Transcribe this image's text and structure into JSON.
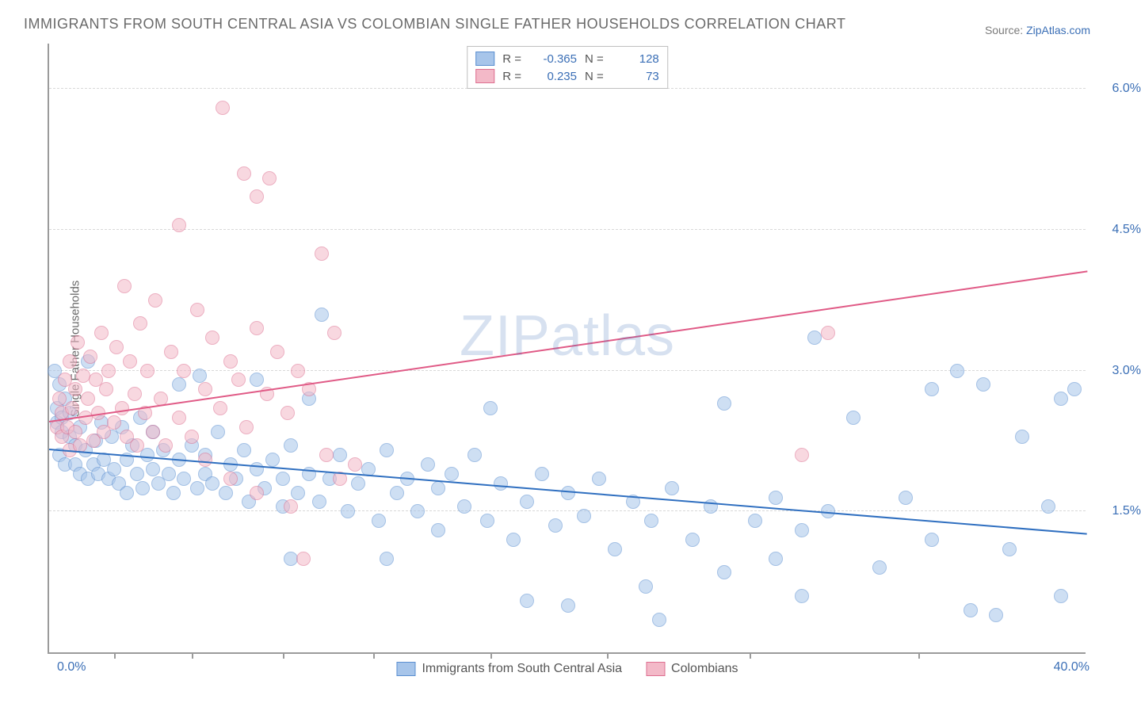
{
  "title": "IMMIGRANTS FROM SOUTH CENTRAL ASIA VS COLOMBIAN SINGLE FATHER HOUSEHOLDS CORRELATION CHART",
  "source_label": "Source: ",
  "source_name": "ZipAtlas.com",
  "watermark_a": "ZIP",
  "watermark_b": "atlas",
  "y_axis_label": "Single Father Households",
  "chart": {
    "type": "scatter",
    "xlim": [
      0,
      40
    ],
    "ylim": [
      0,
      6.5
    ],
    "xticks_labels": [
      "0.0%",
      "40.0%"
    ],
    "yticks": [
      1.5,
      3.0,
      4.5,
      6.0
    ],
    "ytick_labels": [
      "1.5%",
      "3.0%",
      "4.5%",
      "6.0%"
    ],
    "xtick_marks": [
      2.5,
      5.5,
      9,
      12.5,
      17,
      21.5,
      27,
      33.5
    ],
    "background_color": "#ffffff",
    "grid_color": "#d8d8d8",
    "axis_color": "#9b9b9b",
    "label_color": "#6a6a6a",
    "tick_label_color": "#3b6fb6",
    "point_radius": 9,
    "point_opacity": 0.55,
    "line_width": 2,
    "series": [
      {
        "key": "sca",
        "name": "Immigrants from South Central Asia",
        "fill": "#a7c5ea",
        "stroke": "#5b8fd0",
        "line_color": "#2f6fc0",
        "R": "-0.365",
        "N": "128",
        "trend": {
          "x1": 0,
          "y1": 2.15,
          "x2": 40,
          "y2": 1.25
        },
        "points": [
          [
            0.2,
            3.0
          ],
          [
            0.3,
            2.6
          ],
          [
            0.3,
            2.45
          ],
          [
            0.4,
            2.85
          ],
          [
            0.4,
            2.1
          ],
          [
            0.5,
            2.5
          ],
          [
            0.5,
            2.35
          ],
          [
            0.6,
            2.7
          ],
          [
            0.6,
            2.0
          ],
          [
            0.8,
            2.3
          ],
          [
            0.8,
            2.55
          ],
          [
            1.0,
            2.2
          ],
          [
            1.0,
            2.0
          ],
          [
            1.2,
            1.9
          ],
          [
            1.2,
            2.4
          ],
          [
            1.4,
            2.15
          ],
          [
            1.5,
            3.1
          ],
          [
            1.5,
            1.85
          ],
          [
            1.7,
            2.0
          ],
          [
            1.8,
            2.25
          ],
          [
            1.9,
            1.9
          ],
          [
            2.0,
            2.45
          ],
          [
            2.1,
            2.05
          ],
          [
            2.3,
            1.85
          ],
          [
            2.4,
            2.3
          ],
          [
            2.5,
            1.95
          ],
          [
            2.7,
            1.8
          ],
          [
            2.8,
            2.4
          ],
          [
            3.0,
            2.05
          ],
          [
            3.0,
            1.7
          ],
          [
            3.2,
            2.2
          ],
          [
            3.4,
            1.9
          ],
          [
            3.5,
            2.5
          ],
          [
            3.6,
            1.75
          ],
          [
            3.8,
            2.1
          ],
          [
            4.0,
            1.95
          ],
          [
            4.0,
            2.35
          ],
          [
            4.2,
            1.8
          ],
          [
            4.4,
            2.15
          ],
          [
            4.6,
            1.9
          ],
          [
            4.8,
            1.7
          ],
          [
            5.0,
            2.05
          ],
          [
            5.0,
            2.85
          ],
          [
            5.2,
            1.85
          ],
          [
            5.5,
            2.2
          ],
          [
            5.7,
            1.75
          ],
          [
            5.8,
            2.95
          ],
          [
            6.0,
            1.9
          ],
          [
            6.0,
            2.1
          ],
          [
            6.3,
            1.8
          ],
          [
            6.5,
            2.35
          ],
          [
            6.8,
            1.7
          ],
          [
            7.0,
            2.0
          ],
          [
            7.2,
            1.85
          ],
          [
            7.5,
            2.15
          ],
          [
            7.7,
            1.6
          ],
          [
            8.0,
            1.95
          ],
          [
            8.0,
            2.9
          ],
          [
            8.3,
            1.75
          ],
          [
            8.6,
            2.05
          ],
          [
            9.0,
            1.85
          ],
          [
            9.0,
            1.55
          ],
          [
            9.3,
            2.2
          ],
          [
            9.3,
            1.0
          ],
          [
            9.6,
            1.7
          ],
          [
            10.0,
            1.9
          ],
          [
            10.0,
            2.7
          ],
          [
            10.4,
            1.6
          ],
          [
            10.5,
            3.6
          ],
          [
            10.8,
            1.85
          ],
          [
            11.2,
            2.1
          ],
          [
            11.5,
            1.5
          ],
          [
            11.9,
            1.8
          ],
          [
            12.3,
            1.95
          ],
          [
            12.7,
            1.4
          ],
          [
            13.0,
            2.15
          ],
          [
            13.0,
            1.0
          ],
          [
            13.4,
            1.7
          ],
          [
            13.8,
            1.85
          ],
          [
            14.2,
            1.5
          ],
          [
            14.6,
            2.0
          ],
          [
            15.0,
            1.75
          ],
          [
            15.0,
            1.3
          ],
          [
            15.5,
            1.9
          ],
          [
            16.0,
            1.55
          ],
          [
            16.4,
            2.1
          ],
          [
            16.9,
            1.4
          ],
          [
            17.0,
            2.6
          ],
          [
            17.4,
            1.8
          ],
          [
            17.9,
            1.2
          ],
          [
            18.4,
            1.6
          ],
          [
            18.4,
            0.55
          ],
          [
            19.0,
            1.9
          ],
          [
            19.5,
            1.35
          ],
          [
            20.0,
            1.7
          ],
          [
            20.0,
            0.5
          ],
          [
            20.6,
            1.45
          ],
          [
            21.2,
            1.85
          ],
          [
            21.8,
            1.1
          ],
          [
            22.5,
            1.6
          ],
          [
            23.0,
            0.7
          ],
          [
            23.2,
            1.4
          ],
          [
            23.5,
            0.35
          ],
          [
            24.0,
            1.75
          ],
          [
            24.8,
            1.2
          ],
          [
            25.5,
            1.55
          ],
          [
            26.0,
            2.65
          ],
          [
            26.0,
            0.85
          ],
          [
            27.2,
            1.4
          ],
          [
            28.0,
            1.65
          ],
          [
            28.0,
            1.0
          ],
          [
            29.0,
            0.6
          ],
          [
            29.0,
            1.3
          ],
          [
            29.5,
            3.35
          ],
          [
            30.0,
            1.5
          ],
          [
            31.0,
            2.5
          ],
          [
            32.0,
            0.9
          ],
          [
            33.0,
            1.65
          ],
          [
            34.0,
            2.8
          ],
          [
            34.0,
            1.2
          ],
          [
            35.0,
            3.0
          ],
          [
            35.5,
            0.45
          ],
          [
            36.0,
            2.85
          ],
          [
            36.5,
            0.4
          ],
          [
            37.0,
            1.1
          ],
          [
            37.5,
            2.3
          ],
          [
            38.5,
            1.55
          ],
          [
            39.0,
            0.6
          ],
          [
            39.0,
            2.7
          ],
          [
            39.5,
            2.8
          ]
        ]
      },
      {
        "key": "col",
        "name": "Colombians",
        "fill": "#f3b9c8",
        "stroke": "#de6f90",
        "line_color": "#e05a86",
        "R": "0.235",
        "N": "73",
        "trend": {
          "x1": 0,
          "y1": 2.45,
          "x2": 40,
          "y2": 4.05
        },
        "points": [
          [
            0.3,
            2.4
          ],
          [
            0.4,
            2.7
          ],
          [
            0.5,
            2.3
          ],
          [
            0.5,
            2.55
          ],
          [
            0.6,
            2.9
          ],
          [
            0.7,
            2.4
          ],
          [
            0.8,
            2.15
          ],
          [
            0.8,
            3.1
          ],
          [
            0.9,
            2.6
          ],
          [
            1.0,
            2.35
          ],
          [
            1.0,
            2.8
          ],
          [
            1.1,
            3.3
          ],
          [
            1.2,
            2.2
          ],
          [
            1.3,
            2.95
          ],
          [
            1.4,
            2.5
          ],
          [
            1.5,
            2.7
          ],
          [
            1.6,
            3.15
          ],
          [
            1.7,
            2.25
          ],
          [
            1.8,
            2.9
          ],
          [
            1.9,
            2.55
          ],
          [
            2.0,
            3.4
          ],
          [
            2.1,
            2.35
          ],
          [
            2.2,
            2.8
          ],
          [
            2.3,
            3.0
          ],
          [
            2.5,
            2.45
          ],
          [
            2.6,
            3.25
          ],
          [
            2.8,
            2.6
          ],
          [
            2.9,
            3.9
          ],
          [
            3.0,
            2.3
          ],
          [
            3.1,
            3.1
          ],
          [
            3.3,
            2.75
          ],
          [
            3.4,
            2.2
          ],
          [
            3.5,
            3.5
          ],
          [
            3.7,
            2.55
          ],
          [
            3.8,
            3.0
          ],
          [
            4.0,
            2.35
          ],
          [
            4.1,
            3.75
          ],
          [
            4.3,
            2.7
          ],
          [
            4.5,
            2.2
          ],
          [
            4.7,
            3.2
          ],
          [
            5.0,
            2.5
          ],
          [
            5.0,
            4.55
          ],
          [
            5.2,
            3.0
          ],
          [
            5.5,
            2.3
          ],
          [
            5.7,
            3.65
          ],
          [
            6.0,
            2.8
          ],
          [
            6.0,
            2.05
          ],
          [
            6.3,
            3.35
          ],
          [
            6.6,
            2.6
          ],
          [
            6.7,
            5.8
          ],
          [
            7.0,
            3.1
          ],
          [
            7.0,
            1.85
          ],
          [
            7.3,
            2.9
          ],
          [
            7.5,
            5.1
          ],
          [
            7.6,
            2.4
          ],
          [
            8.0,
            3.45
          ],
          [
            8.0,
            1.7
          ],
          [
            8.0,
            4.85
          ],
          [
            8.4,
            2.75
          ],
          [
            8.5,
            5.05
          ],
          [
            8.8,
            3.2
          ],
          [
            9.2,
            2.55
          ],
          [
            9.3,
            1.55
          ],
          [
            9.6,
            3.0
          ],
          [
            9.8,
            1.0
          ],
          [
            10.0,
            2.8
          ],
          [
            10.5,
            4.25
          ],
          [
            10.7,
            2.1
          ],
          [
            11.0,
            3.4
          ],
          [
            11.2,
            1.85
          ],
          [
            11.8,
            2.0
          ],
          [
            29.0,
            2.1
          ],
          [
            30.0,
            3.4
          ]
        ]
      }
    ]
  },
  "legend_labels": {
    "R": "R =",
    "N": "N ="
  }
}
